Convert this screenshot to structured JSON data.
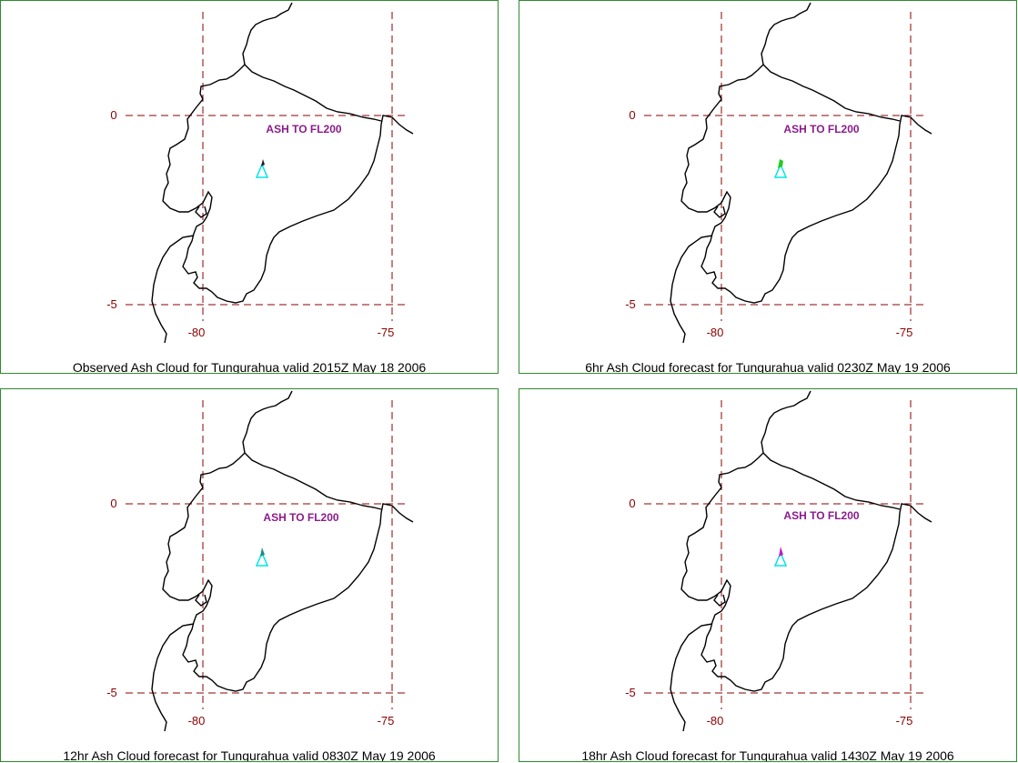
{
  "panels": [
    {
      "caption": "Observed Ash Cloud for Tungurahua valid 2015Z May 18 2006",
      "label": "ASH TO FL200",
      "plume_color": "#1a1a1a"
    },
    {
      "caption": "6hr Ash Cloud forecast for Tungurahua valid 0230Z May 19 2006",
      "label": "ASH TO FL200",
      "plume_color": "#22cc22"
    },
    {
      "caption": "12hr Ash Cloud forecast for Tungurahua valid 0830Z May 19 2006",
      "label": "ASH TO FL200",
      "plume_color": "#1a8a8a"
    },
    {
      "caption": "18hr Ash Cloud forecast for Tungurahua valid 1430Z May 19 2006",
      "label": "ASH TO FL200",
      "plume_color": "#c020c0"
    }
  ],
  "axes": {
    "lat_labels": [
      "0",
      "-5"
    ],
    "lon_labels": [
      "-80",
      "-75"
    ]
  },
  "colors": {
    "grid": "#8b0000",
    "border": "#2e8b2e",
    "volcano": "#00e5e5",
    "coastline": "#000000"
  }
}
